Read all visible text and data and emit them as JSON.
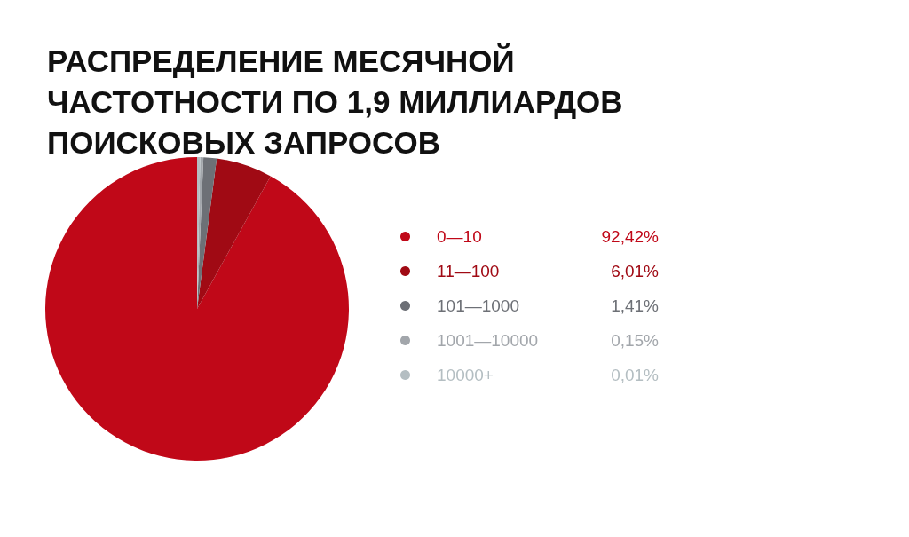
{
  "chart_data": {
    "type": "pie",
    "title": "РАСПРЕДЕЛЕНИЕ МЕСЯЧНОЙ ЧАСТОТНОСТИ ПО 1,9 МИЛЛИАРДОВ ПОИСКОВЫХ ЗАПРОСОВ",
    "categories": [
      "0—10",
      "11—100",
      "101—1000",
      "1001—10000",
      "10000+"
    ],
    "values": [
      92.42,
      6.01,
      1.41,
      0.15,
      0.01
    ],
    "value_labels": [
      "92,42%",
      "6,01%",
      "1,41%",
      "0,15%",
      "0,01%"
    ],
    "colors": [
      "#c00818",
      "#a00a14",
      "#6d7076",
      "#a2a6ab",
      "#b4bec2"
    ],
    "legend": "right"
  }
}
